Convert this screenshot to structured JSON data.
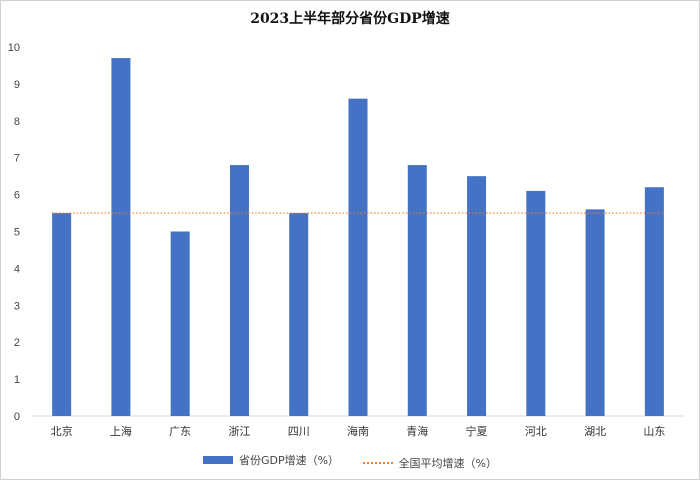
{
  "chart_data": {
    "type": "bar",
    "title": "2023上半年部分省份GDP增速",
    "categories": [
      "北京",
      "上海",
      "广东",
      "浙江",
      "四川",
      "海南",
      "青海",
      "宁夏",
      "河北",
      "湖北",
      "山东"
    ],
    "series": [
      {
        "name": "省份GDP增速（%）",
        "values": [
          5.5,
          9.7,
          5.0,
          6.8,
          5.5,
          8.6,
          6.8,
          6.5,
          6.1,
          5.6,
          6.2
        ],
        "color": "#4472c4"
      }
    ],
    "reference_lines": [
      {
        "name": "全国平均增速（%）",
        "value": 5.5,
        "color": "#ed7d31",
        "style": "dotted"
      }
    ],
    "ylim": [
      0,
      10
    ],
    "yticks": [
      0,
      1,
      2,
      3,
      4,
      5,
      6,
      7,
      8,
      9,
      10
    ],
    "grid": false,
    "legend_position": "bottom"
  }
}
